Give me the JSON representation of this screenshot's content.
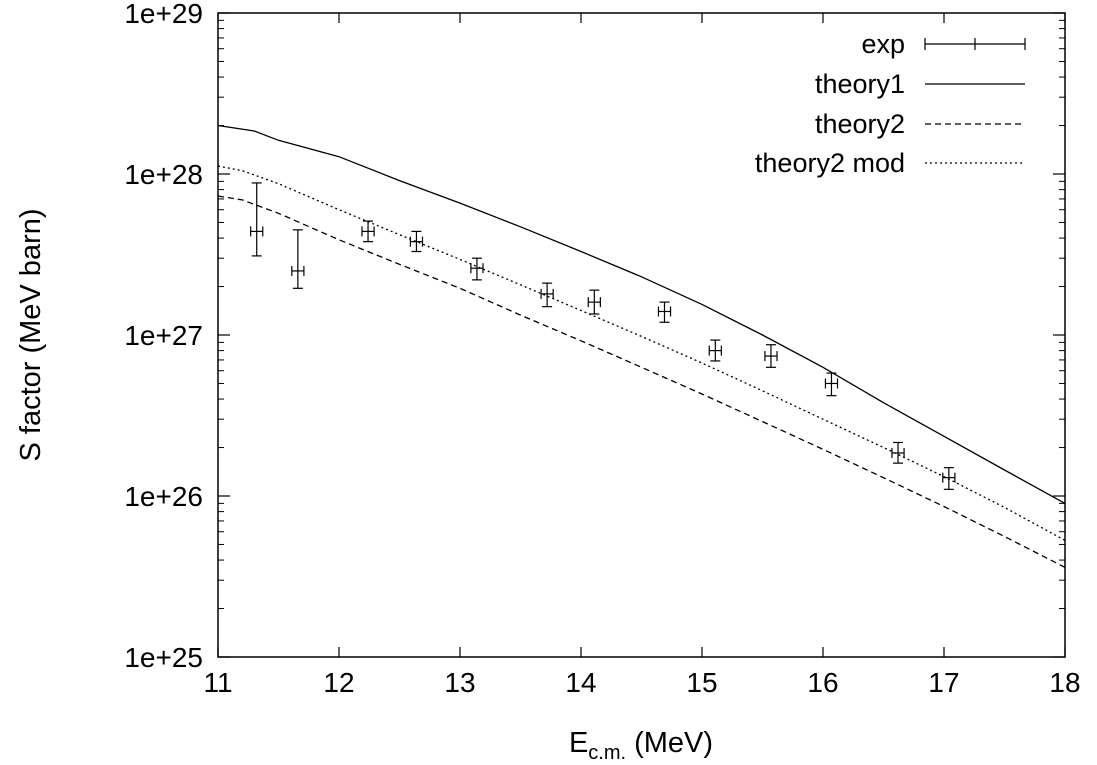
{
  "chart_data": {
    "type": "line",
    "title": "",
    "xlabel": "E",
    "xlabel_subscript": "c.m.",
    "xlabel_unit": "(MeV)",
    "ylabel": "S factor (MeV barn)",
    "xlim": [
      11,
      18
    ],
    "ylim": [
      1e+25,
      1e+29
    ],
    "yscale": "log",
    "grid": false,
    "legend_position": "top-right",
    "x_ticks": [
      "11",
      "12",
      "13",
      "14",
      "15",
      "16",
      "17",
      "18"
    ],
    "y_ticks": [
      "1e+25",
      "1e+26",
      "1e+27",
      "1e+28",
      "1e+29"
    ],
    "series": [
      {
        "name": "exp",
        "style": "errorbars",
        "points": [
          {
            "x": 11.32,
            "y": 4.4e+27,
            "ylo": 3.1e+27,
            "yhi": 8.8e+27,
            "xerr": 0.05
          },
          {
            "x": 11.66,
            "y": 2.5e+27,
            "ylo": 1.95e+27,
            "yhi": 4.5e+27,
            "xerr": 0.05
          },
          {
            "x": 12.24,
            "y": 4.4e+27,
            "ylo": 3.8e+27,
            "yhi": 5.1e+27,
            "xerr": 0.05
          },
          {
            "x": 12.64,
            "y": 3.8e+27,
            "ylo": 3.3e+27,
            "yhi": 4.4e+27,
            "xerr": 0.05
          },
          {
            "x": 13.14,
            "y": 2.6e+27,
            "ylo": 2.2e+27,
            "yhi": 3e+27,
            "xerr": 0.05
          },
          {
            "x": 13.72,
            "y": 1.8e+27,
            "ylo": 1.5e+27,
            "yhi": 2.1e+27,
            "xerr": 0.05
          },
          {
            "x": 14.11,
            "y": 1.6e+27,
            "ylo": 1.35e+27,
            "yhi": 1.9e+27,
            "xerr": 0.05
          },
          {
            "x": 14.69,
            "y": 1.4e+27,
            "ylo": 1.2e+27,
            "yhi": 1.6e+27,
            "xerr": 0.05
          },
          {
            "x": 15.11,
            "y": 8e+26,
            "ylo": 6.9e+26,
            "yhi": 9.3e+26,
            "xerr": 0.05
          },
          {
            "x": 15.57,
            "y": 7.4e+26,
            "ylo": 6.3e+26,
            "yhi": 8.7e+26,
            "xerr": 0.05
          },
          {
            "x": 16.07,
            "y": 5e+26,
            "ylo": 4.2e+26,
            "yhi": 5.8e+26,
            "xerr": 0.05
          },
          {
            "x": 16.62,
            "y": 1.85e+26,
            "ylo": 1.6e+26,
            "yhi": 2.15e+26,
            "xerr": 0.05
          },
          {
            "x": 17.04,
            "y": 1.3e+26,
            "ylo": 1.1e+26,
            "yhi": 1.5e+26,
            "xerr": 0.05
          }
        ]
      },
      {
        "name": "theory1",
        "style": "solid",
        "x": [
          11.0,
          11.3,
          11.5,
          12.0,
          12.5,
          13.0,
          13.5,
          14.0,
          14.5,
          15.0,
          15.5,
          16.0,
          16.5,
          17.0,
          17.5,
          18.0
        ],
        "y": [
          2e+28,
          1.85e+28,
          1.62e+28,
          1.28e+28,
          9.1e+27,
          6.6e+27,
          4.7e+27,
          3.3e+27,
          2.3e+27,
          1.55e+27,
          1e+27,
          6.3e+26,
          3.8e+26,
          2.35e+26,
          1.45e+26,
          9e+25
        ]
      },
      {
        "name": "theory2",
        "style": "dashed",
        "x": [
          11.0,
          11.2,
          11.5,
          12.0,
          12.5,
          13.0,
          13.5,
          14.0,
          14.5,
          15.0,
          15.5,
          16.0,
          16.5,
          17.0,
          17.5,
          18.0
        ],
        "y": [
          7.3e+27,
          6.9e+27,
          5.7e+27,
          3.9e+27,
          2.75e+27,
          1.95e+27,
          1.33e+27,
          9.2e+26,
          6.3e+26,
          4.3e+26,
          2.9e+26,
          1.95e+26,
          1.3e+26,
          8.6e+25,
          5.6e+25,
          3.6e+25
        ]
      },
      {
        "name": "theory2 mod",
        "style": "dotted",
        "x": [
          11.0,
          11.2,
          11.5,
          12.0,
          12.5,
          13.0,
          13.5,
          14.0,
          14.5,
          15.0,
          15.5,
          16.0,
          16.5,
          17.0,
          17.5,
          18.0
        ],
        "y": [
          1.12e+28,
          1.05e+28,
          8.7e+27,
          6e+27,
          4.2e+27,
          2.95e+27,
          2.05e+27,
          1.42e+27,
          9.8e+26,
          6.7e+26,
          4.5e+26,
          3e+26,
          2e+26,
          1.32e+26,
          8.5e+25,
          5.3e+25
        ]
      }
    ]
  }
}
